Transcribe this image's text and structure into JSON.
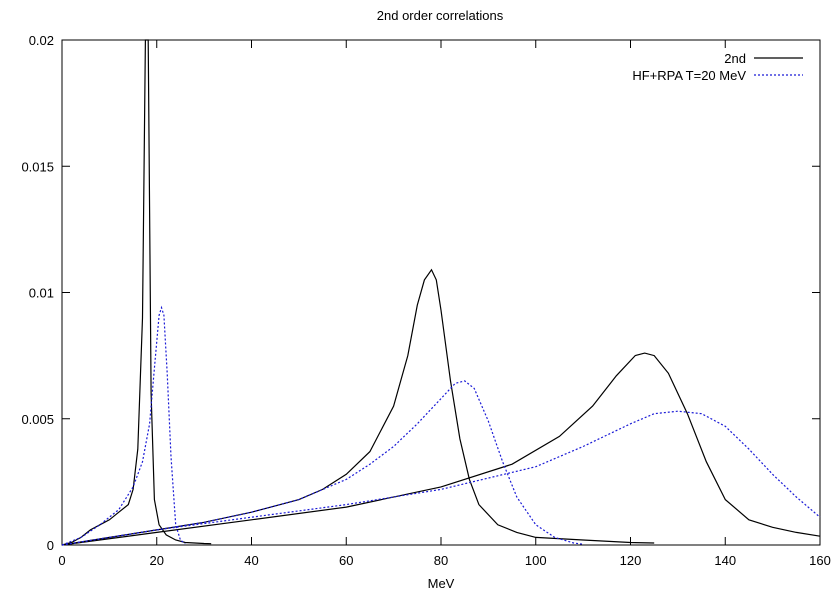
{
  "chart_data": {
    "type": "line",
    "title": "2nd order correlations",
    "xlabel": "MeV",
    "ylabel": "",
    "xlim": [
      0,
      160
    ],
    "ylim": [
      0,
      0.02
    ],
    "xticks": [
      "0",
      "20",
      "40",
      "60",
      "80",
      "100",
      "120",
      "140",
      "160"
    ],
    "yticks": [
      "0",
      "0.005",
      "0.01",
      "0.015",
      "0.02"
    ],
    "legend_position": "top-right",
    "grid": false,
    "series": [
      {
        "name": "2nd",
        "color": "#000000",
        "dash": "solid",
        "curves": [
          [
            [
              0,
              0
            ],
            [
              2,
              0.0001
            ],
            [
              4,
              0.0003
            ],
            [
              6,
              0.0006
            ],
            [
              8,
              0.0008
            ],
            [
              10,
              0.001
            ],
            [
              12,
              0.0013
            ],
            [
              14,
              0.0016
            ],
            [
              15,
              0.0022
            ],
            [
              16,
              0.0038
            ],
            [
              17,
              0.009
            ],
            [
              17.6,
              0.02
            ],
            [
              18.2,
              0.02
            ],
            [
              18.8,
              0.006
            ],
            [
              19.5,
              0.0018
            ],
            [
              20.5,
              0.0008
            ],
            [
              22,
              0.0004
            ],
            [
              24,
              0.0002
            ],
            [
              26,
              0.0001
            ],
            [
              28,
              8e-05
            ],
            [
              30,
              6e-05
            ],
            [
              31.5,
              5e-05
            ]
          ],
          [
            [
              0,
              0
            ],
            [
              10,
              0.0003
            ],
            [
              20,
              0.0006
            ],
            [
              30,
              0.0009
            ],
            [
              40,
              0.0013
            ],
            [
              50,
              0.0018
            ],
            [
              55,
              0.0022
            ],
            [
              60,
              0.0028
            ],
            [
              65,
              0.0037
            ],
            [
              70,
              0.0055
            ],
            [
              73,
              0.0075
            ],
            [
              75,
              0.0095
            ],
            [
              76.5,
              0.0105
            ],
            [
              78,
              0.0109
            ],
            [
              79,
              0.0105
            ],
            [
              80,
              0.0093
            ],
            [
              82,
              0.0065
            ],
            [
              84,
              0.0042
            ],
            [
              86,
              0.0026
            ],
            [
              88,
              0.0016
            ],
            [
              92,
              0.0008
            ],
            [
              96,
              0.0005
            ],
            [
              100,
              0.0003
            ],
            [
              110,
              0.0002
            ],
            [
              120,
              0.0001
            ],
            [
              125,
              8e-05
            ]
          ],
          [
            [
              0,
              0
            ],
            [
              20,
              0.0005
            ],
            [
              40,
              0.001
            ],
            [
              60,
              0.0015
            ],
            [
              80,
              0.0023
            ],
            [
              95,
              0.0032
            ],
            [
              105,
              0.0043
            ],
            [
              112,
              0.0055
            ],
            [
              117,
              0.0067
            ],
            [
              121,
              0.0075
            ],
            [
              123,
              0.0076
            ],
            [
              125,
              0.0075
            ],
            [
              128,
              0.0068
            ],
            [
              132,
              0.0052
            ],
            [
              136,
              0.0033
            ],
            [
              140,
              0.0018
            ],
            [
              145,
              0.001
            ],
            [
              150,
              0.0007
            ],
            [
              155,
              0.0005
            ],
            [
              160,
              0.00035
            ]
          ]
        ]
      },
      {
        "name": "HF+RPA T=20 MeV",
        "color": "#1a1ad6",
        "dash": "dotted",
        "curves": [
          [
            [
              0,
              0
            ],
            [
              4,
              0.0003
            ],
            [
              8,
              0.0008
            ],
            [
              12,
              0.0014
            ],
            [
              15,
              0.0023
            ],
            [
              17,
              0.0033
            ],
            [
              18.5,
              0.0048
            ],
            [
              19.5,
              0.007
            ],
            [
              20.5,
              0.0091
            ],
            [
              21,
              0.0094
            ],
            [
              21.5,
              0.0091
            ],
            [
              22.2,
              0.0068
            ],
            [
              23,
              0.0035
            ],
            [
              24,
              0.0008
            ],
            [
              25,
              0.0002
            ],
            [
              26,
              5e-05
            ]
          ],
          [
            [
              0,
              0
            ],
            [
              10,
              0.0003
            ],
            [
              20,
              0.0006
            ],
            [
              30,
              0.0009
            ],
            [
              40,
              0.0013
            ],
            [
              50,
              0.0018
            ],
            [
              60,
              0.0026
            ],
            [
              65,
              0.0032
            ],
            [
              70,
              0.0039
            ],
            [
              75,
              0.0048
            ],
            [
              80,
              0.0058
            ],
            [
              83,
              0.0064
            ],
            [
              85,
              0.0065
            ],
            [
              87,
              0.0062
            ],
            [
              90,
              0.0049
            ],
            [
              93,
              0.0033
            ],
            [
              96,
              0.0019
            ],
            [
              100,
              0.0008
            ],
            [
              104,
              0.0003
            ],
            [
              108,
              8e-05
            ],
            [
              110,
              3e-05
            ]
          ],
          [
            [
              0,
              0
            ],
            [
              20,
              0.0006
            ],
            [
              40,
              0.0011
            ],
            [
              60,
              0.0016
            ],
            [
              80,
              0.0022
            ],
            [
              100,
              0.0031
            ],
            [
              110,
              0.0039
            ],
            [
              120,
              0.0048
            ],
            [
              125,
              0.0052
            ],
            [
              130,
              0.0053
            ],
            [
              135,
              0.0052
            ],
            [
              140,
              0.0047
            ],
            [
              145,
              0.0038
            ],
            [
              150,
              0.0028
            ],
            [
              155,
              0.0019
            ],
            [
              160,
              0.0011
            ]
          ]
        ]
      }
    ]
  }
}
